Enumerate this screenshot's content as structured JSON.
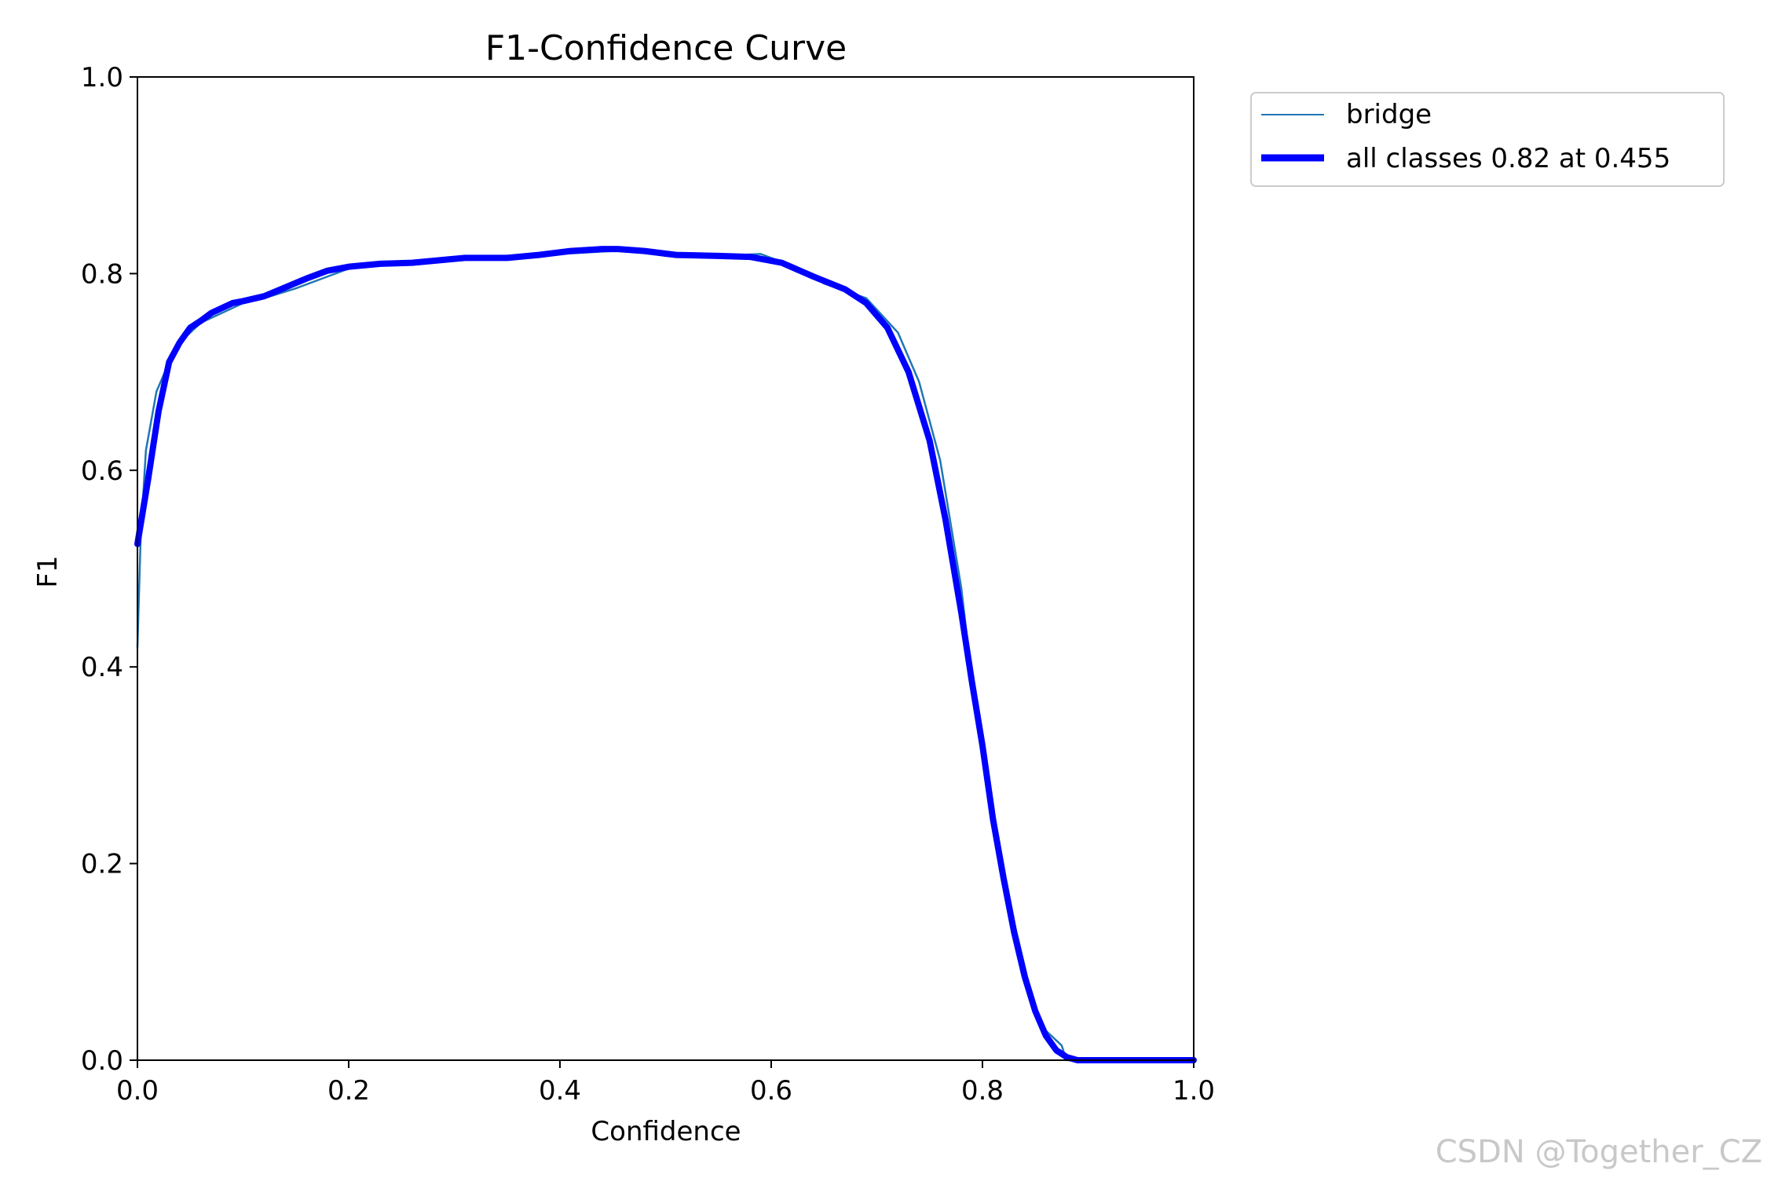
{
  "chart_data": {
    "type": "line",
    "title": "F1-Confidence Curve",
    "xlabel": "Confidence",
    "ylabel": "F1",
    "xlim": [
      0.0,
      1.0
    ],
    "ylim": [
      0.0,
      1.0
    ],
    "xticks": [
      "0.0",
      "0.2",
      "0.4",
      "0.6",
      "0.8",
      "1.0"
    ],
    "yticks": [
      "0.0",
      "0.2",
      "0.4",
      "0.6",
      "0.8",
      "1.0"
    ],
    "grid": false,
    "legend_position": "outside-top-right",
    "series": [
      {
        "name": "bridge",
        "color": "#1f77b4",
        "x": [
          0.0,
          0.003,
          0.008,
          0.018,
          0.03,
          0.045,
          0.06,
          0.08,
          0.1,
          0.12,
          0.15,
          0.2,
          0.25,
          0.3,
          0.35,
          0.4,
          0.45,
          0.47,
          0.5,
          0.55,
          0.59,
          0.62,
          0.65,
          0.69,
          0.72,
          0.74,
          0.76,
          0.78,
          0.795,
          0.81,
          0.83,
          0.85,
          0.86,
          0.875,
          0.878,
          0.88,
          0.9,
          1.0
        ],
        "y": [
          0.42,
          0.53,
          0.62,
          0.68,
          0.71,
          0.735,
          0.75,
          0.76,
          0.77,
          0.775,
          0.785,
          0.805,
          0.81,
          0.815,
          0.815,
          0.82,
          0.823,
          0.826,
          0.818,
          0.818,
          0.82,
          0.808,
          0.79,
          0.775,
          0.74,
          0.69,
          0.61,
          0.48,
          0.34,
          0.25,
          0.14,
          0.05,
          0.03,
          0.015,
          0.005,
          0.0,
          0.0,
          0.0
        ]
      },
      {
        "name": "all classes 0.82 at 0.455",
        "color": "#0000ff",
        "x": [
          0.0,
          0.01,
          0.02,
          0.03,
          0.04,
          0.05,
          0.06,
          0.07,
          0.08,
          0.09,
          0.1,
          0.12,
          0.14,
          0.16,
          0.18,
          0.2,
          0.23,
          0.26,
          0.29,
          0.31,
          0.35,
          0.38,
          0.41,
          0.44,
          0.455,
          0.48,
          0.51,
          0.55,
          0.58,
          0.61,
          0.64,
          0.67,
          0.69,
          0.71,
          0.73,
          0.75,
          0.765,
          0.78,
          0.79,
          0.8,
          0.81,
          0.82,
          0.83,
          0.84,
          0.85,
          0.86,
          0.87,
          0.88,
          0.89,
          0.9,
          0.92,
          0.95,
          1.0
        ],
        "y": [
          0.525,
          0.59,
          0.66,
          0.71,
          0.73,
          0.745,
          0.752,
          0.76,
          0.765,
          0.77,
          0.772,
          0.777,
          0.786,
          0.795,
          0.803,
          0.807,
          0.81,
          0.811,
          0.814,
          0.816,
          0.816,
          0.819,
          0.823,
          0.825,
          0.825,
          0.823,
          0.819,
          0.818,
          0.817,
          0.811,
          0.797,
          0.784,
          0.77,
          0.745,
          0.7,
          0.63,
          0.55,
          0.455,
          0.385,
          0.32,
          0.245,
          0.185,
          0.13,
          0.085,
          0.05,
          0.025,
          0.01,
          0.003,
          0.0,
          0.0,
          0.0,
          0.0,
          0.0
        ]
      }
    ]
  },
  "watermark": "CSDN @Together_CZ"
}
